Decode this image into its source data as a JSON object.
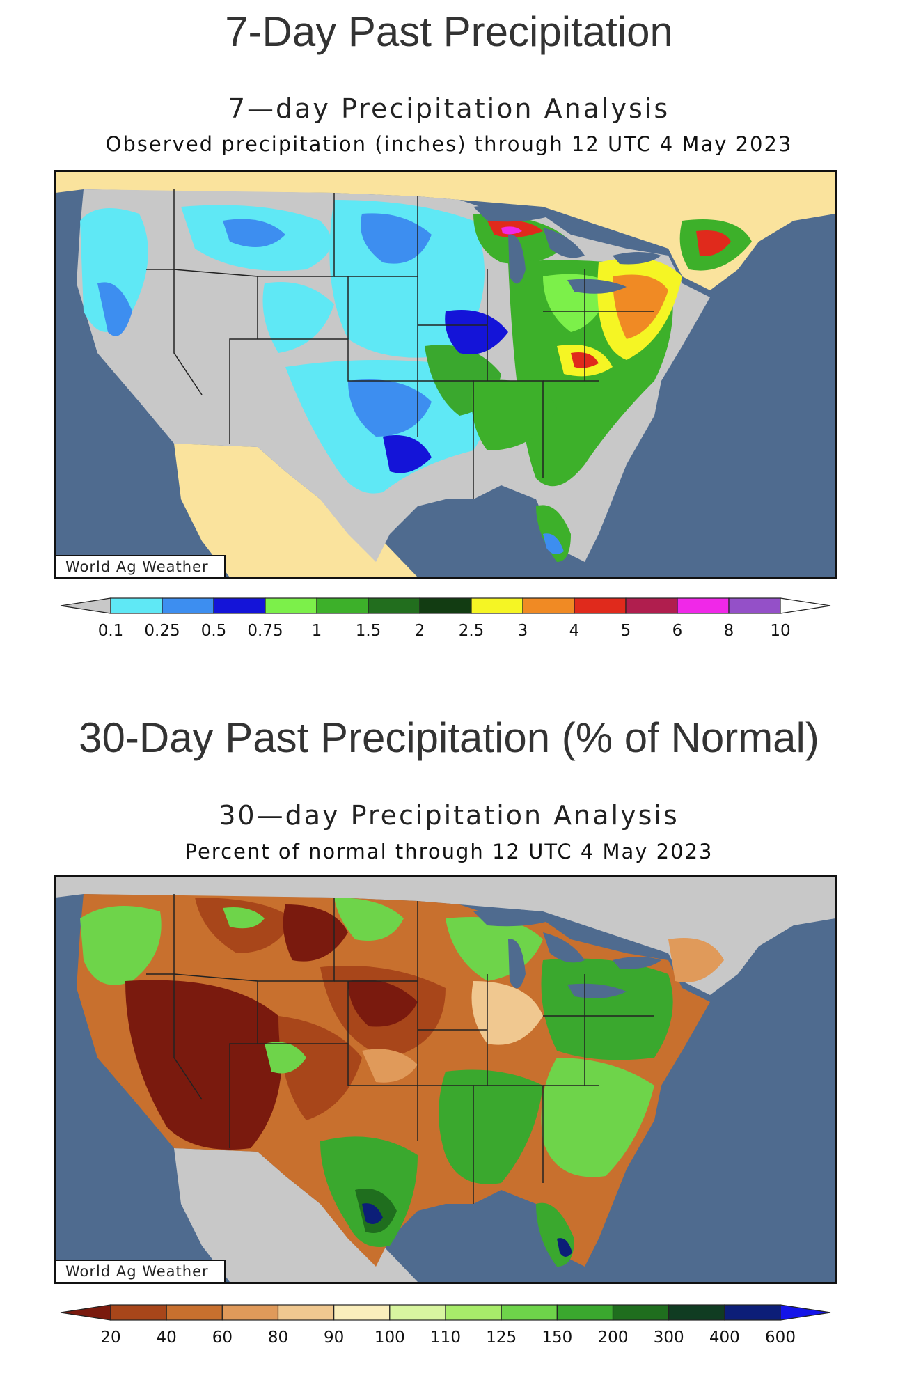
{
  "section1": {
    "heading": "7-Day Past Precipitation",
    "map_title": "7—day  Precipitation  Analysis",
    "map_subtitle": "Observed  precipitation  (inches)  through  12  UTC  4  May  2023",
    "credit": "World Ag Weather",
    "legend": {
      "ticks": [
        "0.1",
        "0.25",
        "0.5",
        "0.75",
        "1",
        "1.5",
        "2",
        "2.5",
        "3",
        "4",
        "5",
        "6",
        "8",
        "10"
      ],
      "colors": [
        "#c8c8c8",
        "#5fe8f5",
        "#3d8ef0",
        "#1414d8",
        "#7cf04a",
        "#3db02a",
        "#226e1e",
        "#123c12",
        "#f5f524",
        "#f08a24",
        "#e02a1c",
        "#b01e4e",
        "#f028e8",
        "#9450c8",
        "#ffffff"
      ]
    }
  },
  "section2": {
    "heading": "30-Day Past Precipitation (% of Normal)",
    "map_title": "30—day  Precipitation  Analysis",
    "map_subtitle": "Percent  of  normal  through  12  UTC  4  May  2023",
    "credit": "World Ag Weather",
    "legend": {
      "ticks": [
        "20",
        "40",
        "60",
        "80",
        "90",
        "100",
        "110",
        "125",
        "150",
        "200",
        "300",
        "400",
        "600"
      ],
      "colors": [
        "#7a1a0e",
        "#a8461a",
        "#c8702e",
        "#e09a5a",
        "#f0c890",
        "#faeebc",
        "#d8f5a0",
        "#a8ec6a",
        "#6ed44a",
        "#3aa82e",
        "#1f6e1e",
        "#103c22",
        "#0c1e78",
        "#1414e8"
      ]
    }
  }
}
